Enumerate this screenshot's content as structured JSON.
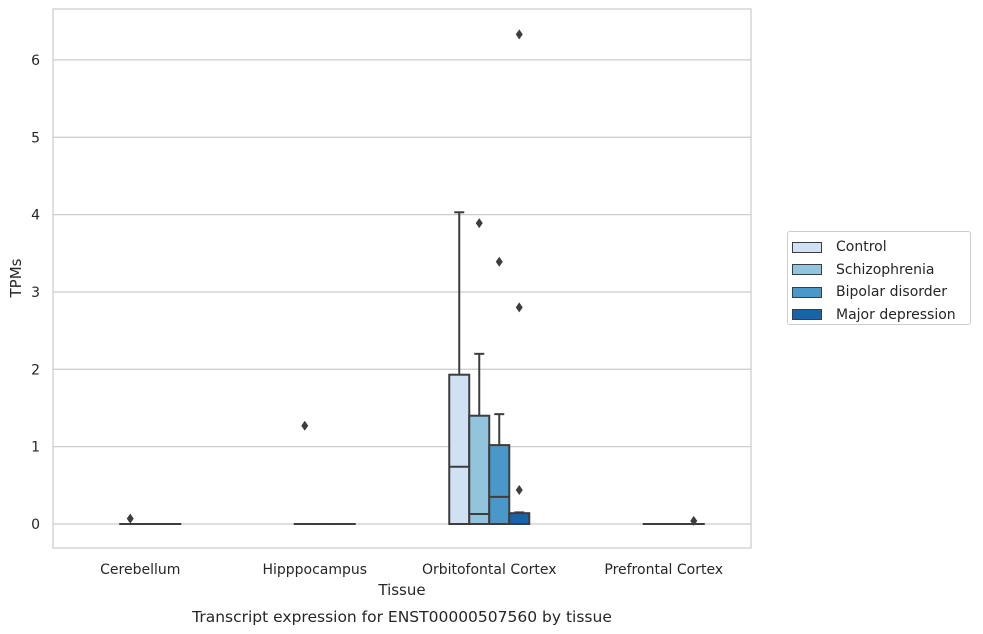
{
  "chart_data": {
    "type": "box",
    "title": "Transcript expression for ENST00000507560 by tissue",
    "xlabel": "Tissue",
    "ylabel": "TPMs",
    "ylim": [
      -0.3,
      6.65
    ],
    "yticks": [
      0,
      1,
      2,
      3,
      4,
      5,
      6
    ],
    "grid": "horizontal",
    "legend_position": "right",
    "categories": [
      "Cerebellum",
      "Hipppocampus",
      "Orbitofontal Cortex",
      "Prefrontal Cortex"
    ],
    "series": [
      {
        "name": "Control",
        "color": "#cfe1f2",
        "boxes": [
          null,
          null,
          {
            "min": 0.0,
            "q1": 0.0,
            "median": 0.74,
            "q3": 1.93,
            "max": 4.03,
            "outliers": []
          },
          null
        ]
      },
      {
        "name": "Schizophrenia",
        "color": "#93c4de",
        "boxes": [
          {
            "min": 0.0,
            "q1": 0.0,
            "median": 0.0,
            "q3": 0.0,
            "max": 0.0,
            "outliers": [
              0.07
            ]
          },
          {
            "min": 0.0,
            "q1": 0.0,
            "median": 0.0,
            "q3": 0.0,
            "max": 0.0,
            "outliers": [
              1.27
            ]
          },
          {
            "min": 0.0,
            "q1": 0.0,
            "median": 0.13,
            "q3": 1.4,
            "max": 2.2,
            "outliers": [
              3.89
            ]
          },
          {
            "min": 0.0,
            "q1": 0.0,
            "median": 0.0,
            "q3": 0.0,
            "max": 0.0,
            "outliers": []
          }
        ]
      },
      {
        "name": "Bipolar disorder",
        "color": "#4a98c9",
        "boxes": [
          {
            "min": 0.0,
            "q1": 0.0,
            "median": 0.0,
            "q3": 0.0,
            "max": 0.0,
            "outliers": []
          },
          {
            "min": 0.0,
            "q1": 0.0,
            "median": 0.0,
            "q3": 0.0,
            "max": 0.0,
            "outliers": []
          },
          {
            "min": 0.0,
            "q1": 0.0,
            "median": 0.35,
            "q3": 1.02,
            "max": 1.42,
            "outliers": [
              3.39
            ]
          },
          {
            "min": 0.0,
            "q1": 0.0,
            "median": 0.0,
            "q3": 0.0,
            "max": 0.0,
            "outliers": []
          }
        ]
      },
      {
        "name": "Major depression",
        "color": "#1764ab",
        "boxes": [
          {
            "min": 0.0,
            "q1": 0.0,
            "median": 0.0,
            "q3": 0.0,
            "max": 0.0,
            "outliers": []
          },
          {
            "min": 0.0,
            "q1": 0.0,
            "median": 0.0,
            "q3": 0.0,
            "max": 0.0,
            "outliers": []
          },
          {
            "min": 0.0,
            "q1": 0.0,
            "median": 0.0,
            "q3": 0.14,
            "max": 0.15,
            "outliers": [
              0.44,
              2.8,
              6.33
            ]
          },
          {
            "min": 0.0,
            "q1": 0.0,
            "median": 0.0,
            "q3": 0.0,
            "max": 0.0,
            "outliers": [
              0.04
            ]
          }
        ]
      }
    ]
  }
}
